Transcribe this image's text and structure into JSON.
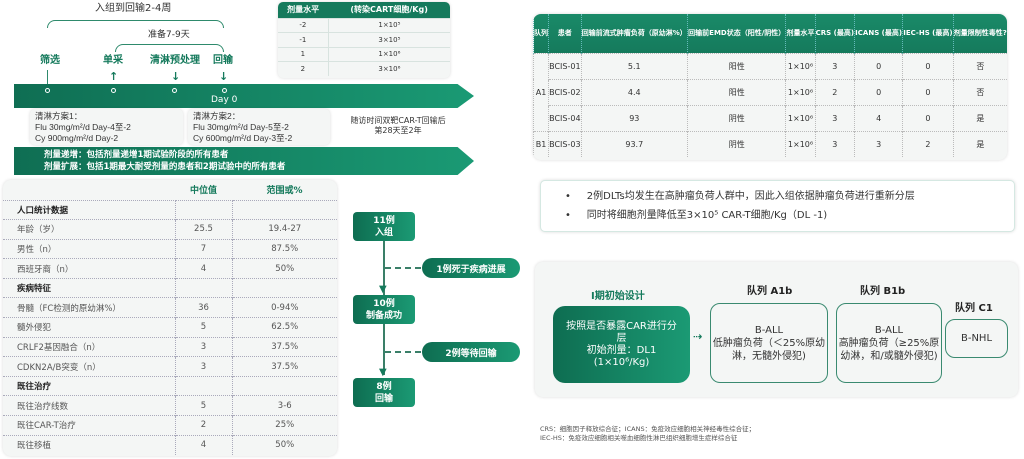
{
  "timeline": {
    "brace_outer": "入组到回输2-4周",
    "brace_inner": "准备7-9天",
    "steps": [
      "筛选",
      "单采",
      "清淋预处理",
      "回输"
    ],
    "day0": "Day 0",
    "regimen1": [
      "清淋方案1：",
      "Flu 30mg/m²/d Day-4至-2",
      "Cy 900mg/m²/d Day-2"
    ],
    "regimen2": [
      "清淋方案2：",
      "Flu 30mg/m²/d Day-5至-2",
      "Cy 600mg/m²/d Day-3至-2"
    ],
    "followup": [
      "随访时间双靶CAR-T回输后",
      "第28天至2年"
    ],
    "band": [
      "剂量递增：包括剂量递增1期试验阶段的所有患者",
      "剂量扩展：包括1期最大耐受剂量的患者和2期试验中的所有患者"
    ]
  },
  "dose_table": {
    "headers": [
      "剂量水平",
      "(转染CART细胞/Kg)"
    ],
    "rows": [
      [
        "-2",
        "1×10⁵"
      ],
      [
        "-1",
        "3×10⁵"
      ],
      [
        "1",
        "1×10⁶"
      ],
      [
        "2",
        "3×10⁶"
      ]
    ]
  },
  "baseline_table": {
    "headers": [
      "",
      "中位值",
      "范围或%"
    ],
    "rows": [
      {
        "section": true,
        "cells": [
          "人口统计数据",
          "",
          ""
        ]
      },
      {
        "cells": [
          "年龄（岁）",
          "25.5",
          "19.4-27"
        ]
      },
      {
        "cells": [
          "男性（n）",
          "7",
          "87.5%"
        ]
      },
      {
        "cells": [
          "西班牙裔（n）",
          "4",
          "50%"
        ]
      },
      {
        "section": true,
        "cells": [
          "疾病特征",
          "",
          ""
        ]
      },
      {
        "cells": [
          "骨髓（FC检测的原幼淋%）",
          "36",
          "0-94%"
        ]
      },
      {
        "cells": [
          "髓外侵犯",
          "5",
          "62.5%"
        ]
      },
      {
        "cells": [
          "CRLF2基因融合（n）",
          "3",
          "37.5%"
        ]
      },
      {
        "cells": [
          "CDKN2A/B突变（n）",
          "3",
          "37.5%"
        ]
      },
      {
        "section": true,
        "cells": [
          "既往治疗",
          "",
          ""
        ]
      },
      {
        "cells": [
          "既往治疗线数",
          "5",
          "3-6"
        ]
      },
      {
        "cells": [
          "既往CAR-T治疗",
          "2",
          "25%"
        ]
      },
      {
        "cells": [
          "既往移植",
          "4",
          "50%"
        ]
      }
    ]
  },
  "flow": {
    "enrolled": [
      "11例",
      "入组"
    ],
    "manufactured": [
      "10例",
      "制备成功"
    ],
    "infused": [
      "8例",
      "回输"
    ],
    "drop1": "1例死于疾病进展",
    "drop2": "2例等待回输"
  },
  "dlt_table": {
    "headers": [
      "队列",
      "患者",
      "回输前流式肿瘤负荷（原幼淋%）",
      "回输前EMD状态（阳性/阴性）",
      "剂量水平",
      "CRS (最高)",
      "ICANS (最高)",
      "IEC-HS (最高)",
      "剂量限制性毒性?"
    ],
    "rows": [
      [
        "A1",
        "BCIS-01",
        "5.1",
        "阳性",
        "1×10⁶",
        "3",
        "0",
        "0",
        "否"
      ],
      [
        "",
        "BCIS-02",
        "4.4",
        "阳性",
        "1×10⁶",
        "2",
        "0",
        "0",
        "否"
      ],
      [
        "",
        "BCIS-04",
        "93",
        "阴性",
        "1×10⁶",
        "3",
        "4",
        "0",
        "是"
      ],
      [
        "B1",
        "BCIS-03",
        "93.7",
        "阴性",
        "1×10⁶",
        "3",
        "3",
        "2",
        "是"
      ]
    ]
  },
  "bullets": [
    "2例DLTs均发生在高肿瘤负荷人群中，因此入组依据肿瘤负荷进行重新分层",
    "同时将细胞剂量降低至3×10⁵ CAR-T细胞/Kg（DL -1)"
  ],
  "design": {
    "title": "I期初始设计",
    "initial": [
      "按照是否暴露CAR进行分层",
      "初始剂量：DL1",
      "(1×10⁶/Kg)"
    ],
    "cohorts": [
      {
        "label": "队列 A1b",
        "lines": [
          "B-ALL",
          "低肿瘤负荷（＜25%原幼淋，无髓外侵犯)"
        ]
      },
      {
        "label": "队列 B1b",
        "lines": [
          "B-ALL",
          "高肿瘤负荷（≥25%原幼淋，和/或髓外侵犯)"
        ]
      },
      {
        "label": "队列 C1",
        "lines": [
          "B-NHL"
        ]
      }
    ]
  },
  "footnote": [
    "CRS：细胞因子释放综合征；ICANS：免疫效应细胞相关神经毒性综合征；",
    "IEC-HS：免疫效应细胞相关噬血细胞性淋巴组织细胞增生症样综合征"
  ],
  "colors": {
    "primary": "#157a5c",
    "light": "#1b9a74"
  }
}
